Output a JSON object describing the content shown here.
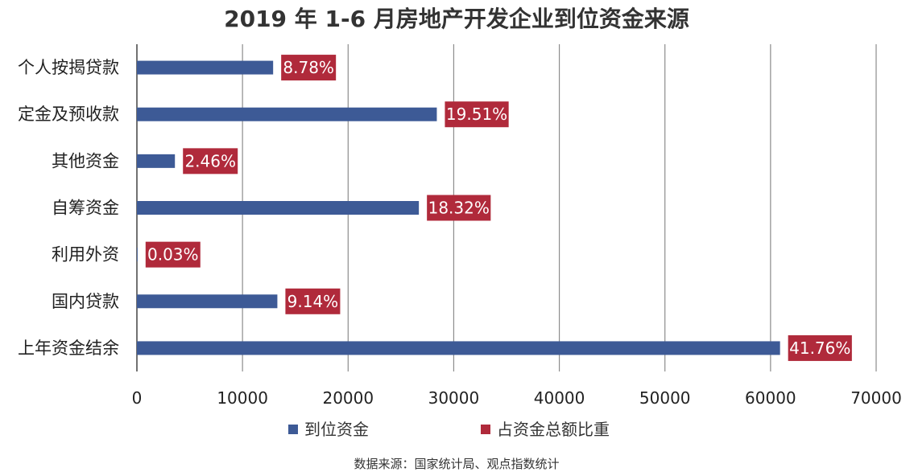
{
  "chart_data": {
    "type": "bar",
    "orientation": "horizontal",
    "title": "2019 年 1-6 月房地产开发企业到位资金来源",
    "categories": [
      "个人按揭贷款",
      "定金及预收款",
      "其他资金",
      "自筹资金",
      "利用外资",
      "国内贷款",
      "上年资金结余"
    ],
    "series": [
      {
        "name": "到位资金",
        "color": "#3d5a96",
        "values": [
          12900,
          28400,
          3600,
          26700,
          60,
          13300,
          60900
        ]
      },
      {
        "name": "占资金总额比重",
        "color": "#b02a3b",
        "values": [
          "8.78%",
          "19.51%",
          "2.46%",
          "18.32%",
          "0.03%",
          "9.14%",
          "41.76%"
        ]
      }
    ],
    "xlim": [
      0,
      70000
    ],
    "xticks": [
      "0",
      "10000",
      "20000",
      "30000",
      "40000",
      "50000",
      "60000",
      "70000"
    ],
    "grid": true,
    "legend_position": "bottom",
    "source": "数据来源：国家统计局、观点指数统计"
  }
}
